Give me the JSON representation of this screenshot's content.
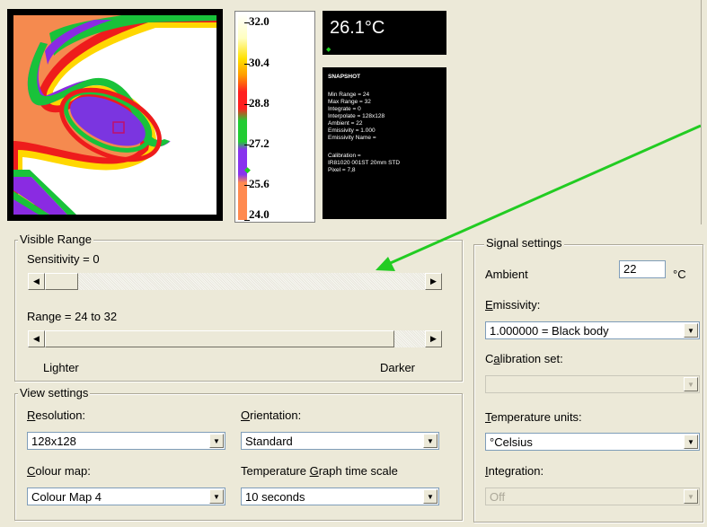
{
  "readout": {
    "temperature": "26.1°C"
  },
  "scale": {
    "ticks": [
      "32.0",
      "30.4",
      "28.8",
      "27.2",
      "25.6",
      "24.0"
    ]
  },
  "snapshot": {
    "title": "SNAPSHOT",
    "lines": [
      "Min Range = 24",
      "Max Range = 32",
      "Integrate = 0",
      "Interpolate = 128x128",
      "Ambient = 22",
      "Emissivity = 1.000",
      "Emissivity Name ="
    ],
    "calib": [
      "Calibration =",
      "IR81020  001ST 20mm STD",
      "Pixel = 7,8"
    ]
  },
  "visible_range": {
    "title": "Visible Range",
    "sensitivity_label": "Sensitivity = 0",
    "range_label": "Range = 24 to 32",
    "lighter": "Lighter",
    "darker": "Darker",
    "sensitivity_value": 0,
    "range_fraction": 0.92
  },
  "view_settings": {
    "title": "View settings",
    "resolution_label": "Resolution:",
    "resolution_value": "128x128",
    "orientation_label": "Orientation:",
    "orientation_value": "Standard",
    "colour_map_label": "Colour map:",
    "colour_map_value": "Colour Map 4",
    "time_scale_label": "Temperature Graph time scale",
    "time_scale_value": "10 seconds"
  },
  "signal_settings": {
    "title": "Signal settings",
    "ambient_label": "Ambient",
    "ambient_value": "22",
    "ambient_unit": "°C",
    "emissivity_label": "Emissivity:",
    "emissivity_value": "1.000000 = Black body",
    "calibration_label": "Calibration set:",
    "calibration_value": "",
    "units_label": "Temperature units:",
    "units_value": "°Celsius",
    "integration_label": "Integration:",
    "integration_value": "Off"
  },
  "colors": {
    "arrow": "#22cc22",
    "background": "#ece9d8"
  }
}
